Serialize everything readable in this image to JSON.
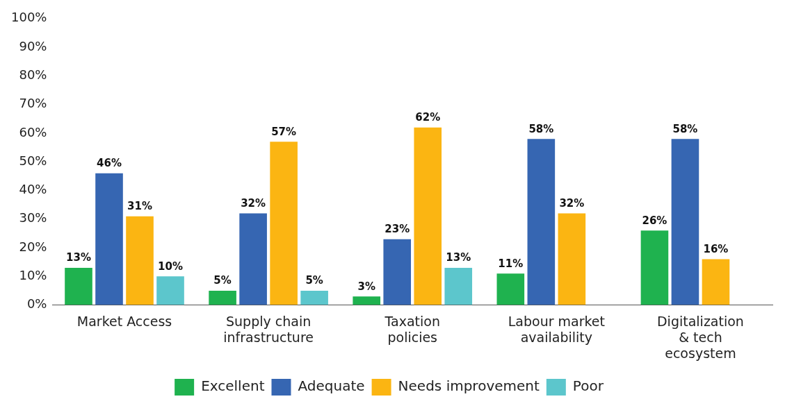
{
  "chart_data": {
    "type": "bar",
    "categories": [
      "Market Access",
      "Supply chain infrastructure",
      "Taxation policies",
      "Labour market availability",
      "Digitalization & tech ecosystem"
    ],
    "series": [
      {
        "name": "Excellent",
        "color": "#1fb24f",
        "values": [
          13,
          5,
          3,
          11,
          26
        ],
        "value_labels": [
          "13%",
          "5%",
          "3%",
          "11%",
          "26%"
        ]
      },
      {
        "name": "Adequate",
        "color": "#3666b2",
        "values": [
          46,
          32,
          23,
          58,
          58
        ],
        "value_labels": [
          "46%",
          "32%",
          "23%",
          "58%",
          "58%"
        ]
      },
      {
        "name": "Needs improvement",
        "color": "#fbb512",
        "values": [
          31,
          57,
          62,
          32,
          16
        ],
        "value_labels": [
          "31%",
          "57%",
          "62%",
          "32%",
          "16%"
        ]
      },
      {
        "name": "Poor",
        "color": "#5cc6cc",
        "values": [
          10,
          5,
          13,
          null,
          null
        ],
        "value_labels": [
          "10%",
          "5%",
          "13%",
          null,
          null
        ]
      }
    ],
    "ylim": [
      0,
      100
    ],
    "yticks": [
      {
        "value": 0,
        "label": "0%"
      },
      {
        "value": 10,
        "label": "10%"
      },
      {
        "value": 20,
        "label": "20%"
      },
      {
        "value": 30,
        "label": "30%"
      },
      {
        "value": 40,
        "label": "40%"
      },
      {
        "value": 50,
        "label": "50%"
      },
      {
        "value": 60,
        "label": "60%"
      },
      {
        "value": 70,
        "label": "70%"
      },
      {
        "value": 80,
        "label": "80%"
      },
      {
        "value": 90,
        "label": "90%"
      },
      {
        "value": 100,
        "label": "100%"
      }
    ],
    "grid": false,
    "legend": "bottom"
  }
}
